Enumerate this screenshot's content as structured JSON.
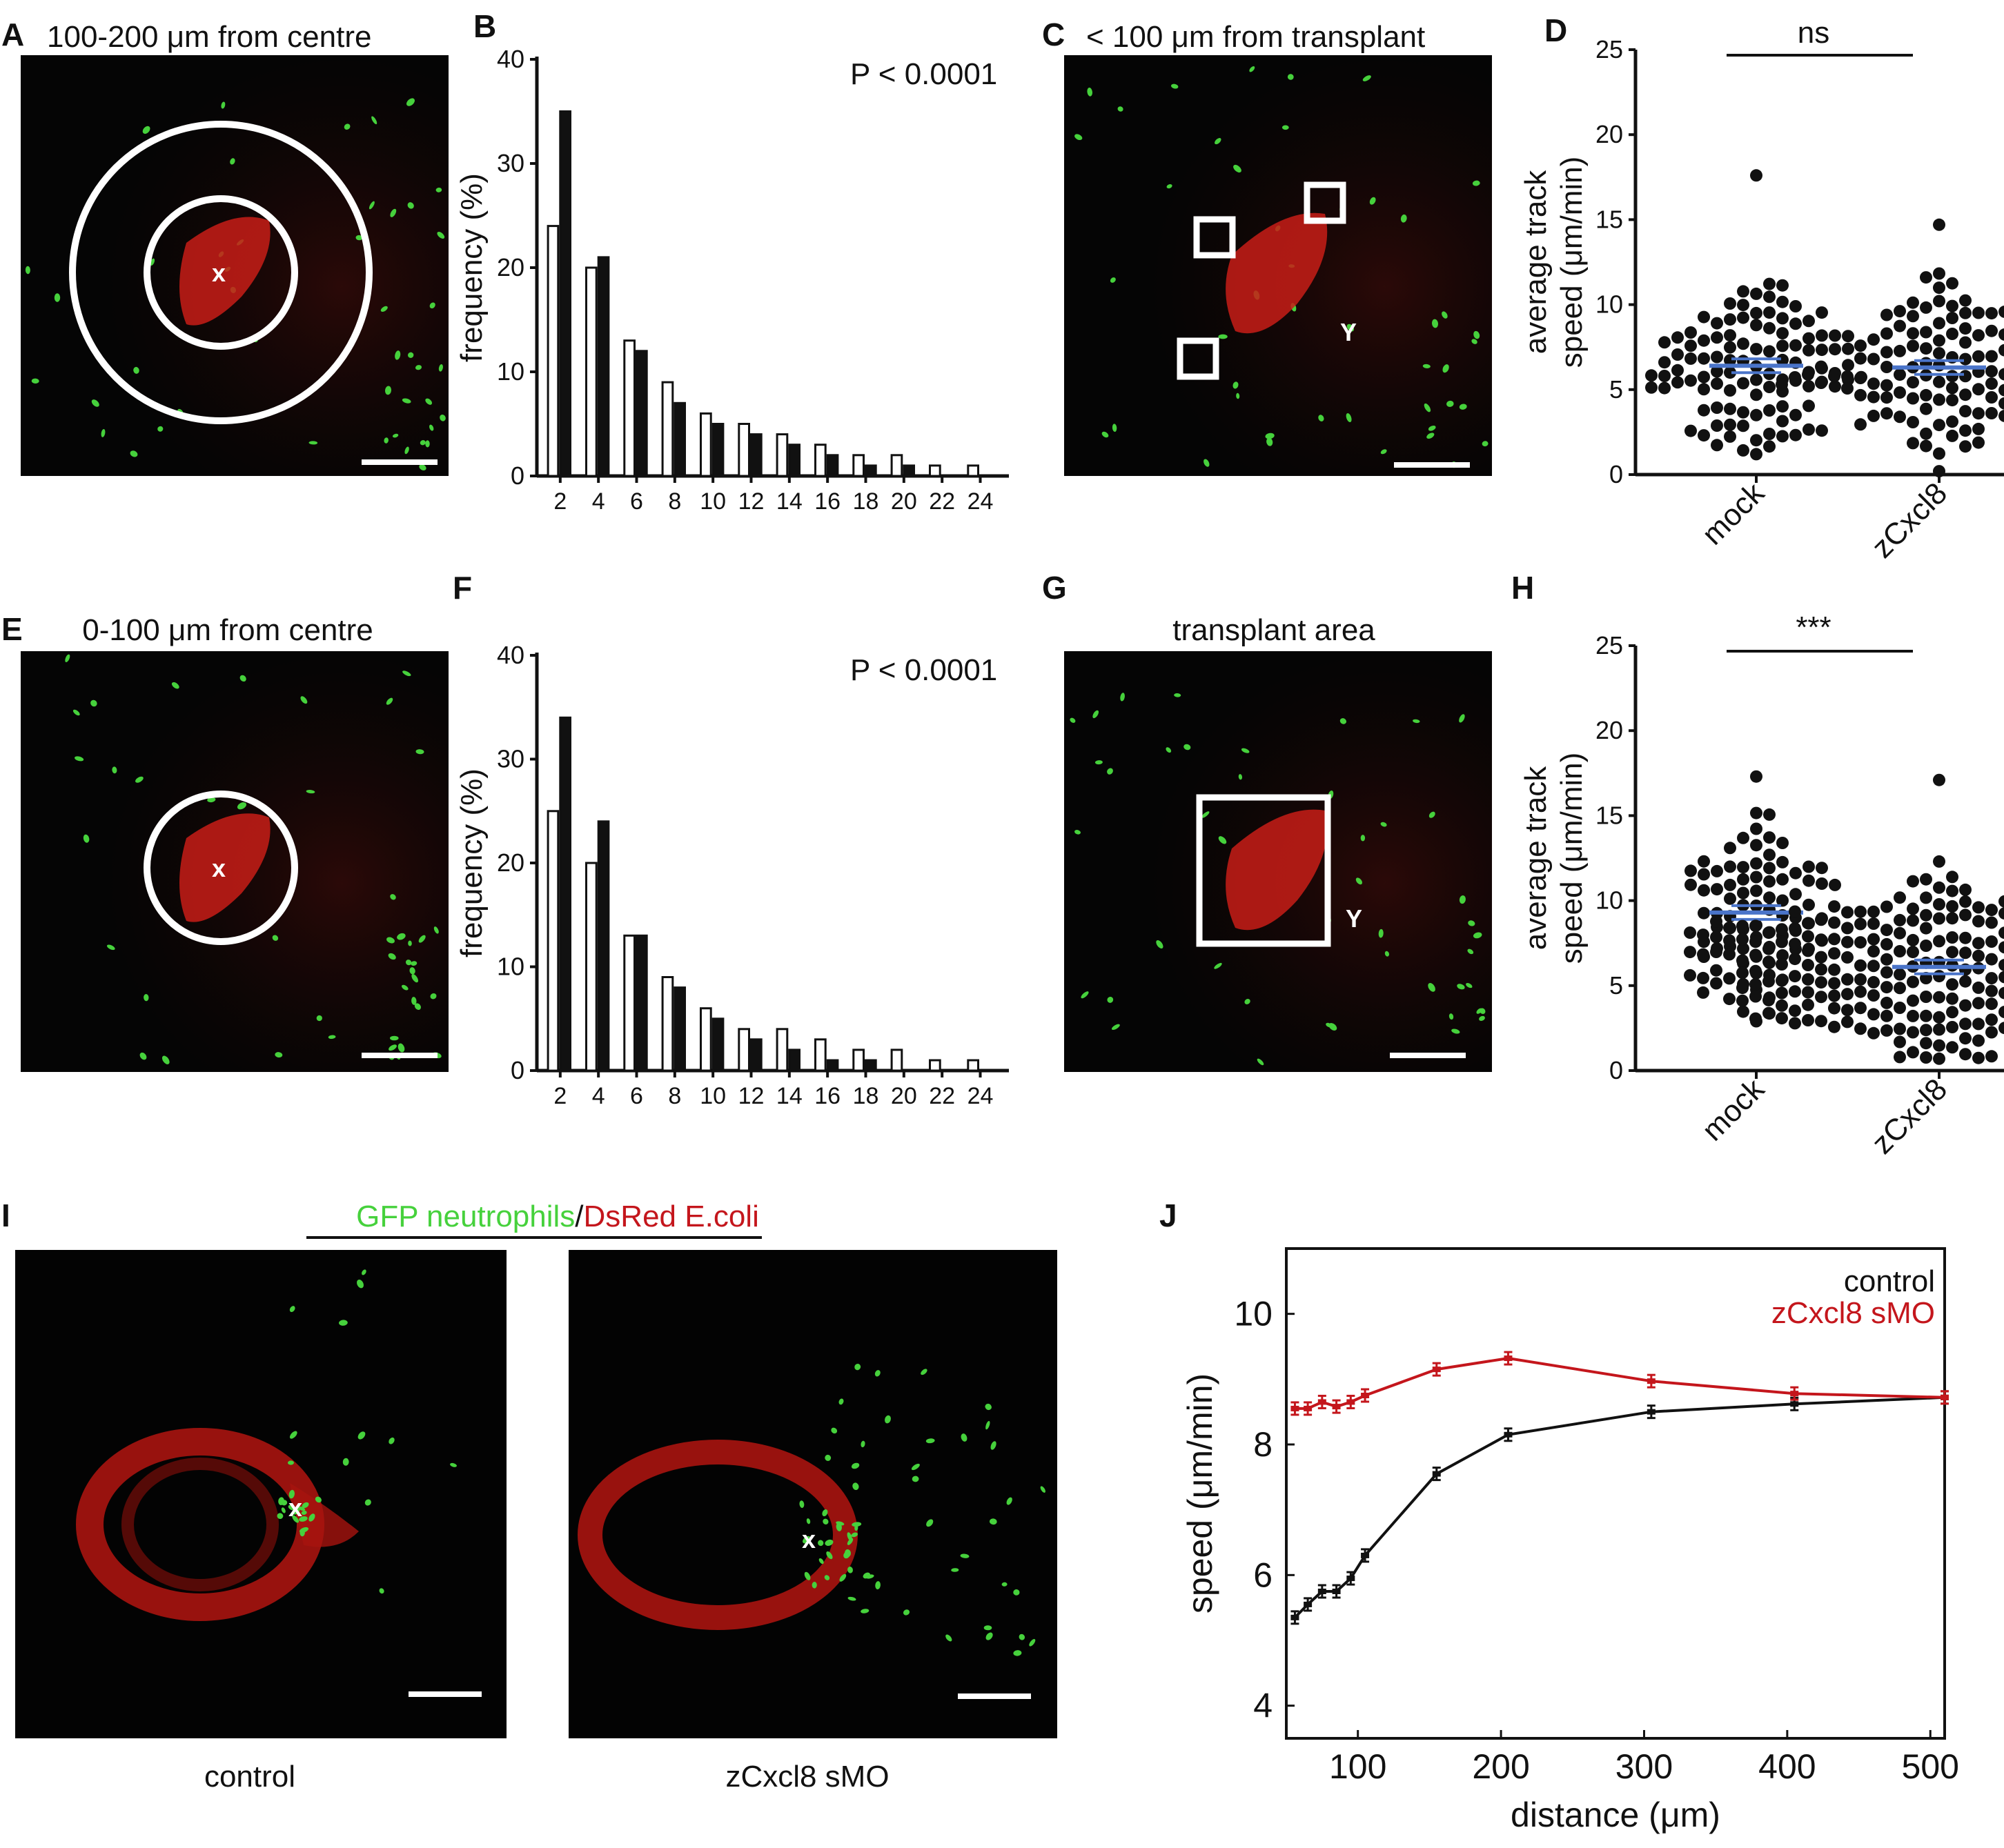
{
  "panels": {
    "A": {
      "label": "A",
      "title": "100-200 μm  from centre",
      "marker": "x"
    },
    "B": {
      "label": "B",
      "pvalue": "P < 0.0001"
    },
    "C": {
      "label": "C",
      "title": "< 100 μm from transplant",
      "marker": "Y"
    },
    "D": {
      "label": "D",
      "sig": "ns"
    },
    "E": {
      "label": "E",
      "title": "0-100 μm from centre",
      "marker": "x"
    },
    "F": {
      "label": "F",
      "pvalue": "P < 0.0001"
    },
    "G": {
      "label": "G",
      "title": "transplant area",
      "marker": "Y"
    },
    "H": {
      "label": "H",
      "sig": "***"
    },
    "I": {
      "label": "I",
      "title_green": "GFP neutrophils",
      "title_sep": "/",
      "title_red": "DsRed E.coli",
      "left_caption": "control",
      "right_caption": "zCxcl8 sMO",
      "marker": "x"
    },
    "J": {
      "label": "J"
    }
  },
  "colors": {
    "neutrophil_green": "#46d13c",
    "ecoli_red": "#c4161c",
    "mean_bar_blue": "#4a74c9",
    "zcxcl8_line": "#c4161c",
    "control_line": "#111111"
  },
  "chart_data": [
    {
      "id": "B",
      "type": "bar",
      "xlabel": "",
      "ylabel": "frequency (%)",
      "ylim": [
        0,
        40
      ],
      "yticks": [
        0,
        10,
        20,
        30,
        40
      ],
      "categories": [
        "2",
        "4",
        "6",
        "8",
        "10",
        "12",
        "14",
        "16",
        "18",
        "20",
        "22",
        "24"
      ],
      "series": [
        {
          "style": "open",
          "values": [
            24,
            20,
            13,
            9,
            6,
            5,
            4,
            3,
            2,
            2,
            1,
            1
          ]
        },
        {
          "style": "filled",
          "values": [
            35,
            21,
            12,
            7,
            5,
            4,
            3,
            2,
            1,
            1,
            0,
            0
          ]
        }
      ]
    },
    {
      "id": "F",
      "type": "bar",
      "xlabel": "",
      "ylabel": "frequency (%)",
      "ylim": [
        0,
        40
      ],
      "yticks": [
        0,
        10,
        20,
        30,
        40
      ],
      "categories": [
        "2",
        "4",
        "6",
        "8",
        "10",
        "12",
        "14",
        "16",
        "18",
        "20",
        "22",
        "24"
      ],
      "series": [
        {
          "style": "open",
          "values": [
            25,
            20,
            13,
            9,
            6,
            4,
            4,
            3,
            2,
            2,
            1,
            1
          ]
        },
        {
          "style": "filled",
          "values": [
            34,
            24,
            13,
            8,
            5,
            3,
            2,
            1,
            1,
            0,
            0,
            0
          ]
        }
      ]
    },
    {
      "id": "D",
      "type": "scatter",
      "ylabel": "average track speed (μm/min)",
      "ylim": [
        0,
        25
      ],
      "yticks": [
        0,
        5,
        10,
        15,
        20,
        25
      ],
      "categories": [
        "mock",
        "zCxcl8"
      ],
      "groups": [
        {
          "name": "mock",
          "n": 110,
          "mean": 6.4,
          "max": 17.6,
          "min": 1.2
        },
        {
          "name": "zCxcl8",
          "n": 120,
          "mean": 6.3,
          "max": 14.7,
          "min": 0.2
        }
      ]
    },
    {
      "id": "H",
      "type": "scatter",
      "ylabel": "average track speed (μm/min)",
      "ylim": [
        0,
        25
      ],
      "yticks": [
        0,
        5,
        10,
        15,
        20,
        25
      ],
      "categories": [
        "mock",
        "zCxcl8"
      ],
      "groups": [
        {
          "name": "mock",
          "n": 80,
          "mean": 9.3,
          "max": 17.3,
          "min": 2.9
        },
        {
          "name": "zCxcl8",
          "n": 330,
          "mean": 6.1,
          "max": 17.1,
          "min": 0.7
        }
      ]
    },
    {
      "id": "J",
      "type": "line",
      "xlabel": "distance (μm)",
      "ylabel": "speed (μm/min)",
      "xlim": [
        50,
        510
      ],
      "ylim": [
        3.5,
        11
      ],
      "xticks": [
        100,
        200,
        300,
        400,
        500
      ],
      "yticks": [
        4,
        6,
        8,
        10
      ],
      "legend": "top-right",
      "series": [
        {
          "name": "control",
          "color": "#111111",
          "x": [
            56,
            65,
            75,
            85,
            95,
            105,
            155,
            205,
            305,
            405,
            510
          ],
          "y": [
            5.35,
            5.55,
            5.75,
            5.75,
            5.95,
            6.3,
            7.55,
            8.15,
            8.5,
            8.62,
            8.72
          ]
        },
        {
          "name": "zCxcl8 sMO",
          "color": "#c4161c",
          "x": [
            56,
            65,
            75,
            85,
            95,
            105,
            155,
            205,
            305,
            405,
            510
          ],
          "y": [
            8.55,
            8.55,
            8.65,
            8.58,
            8.65,
            8.75,
            9.15,
            9.32,
            8.97,
            8.78,
            8.72
          ]
        }
      ]
    }
  ]
}
